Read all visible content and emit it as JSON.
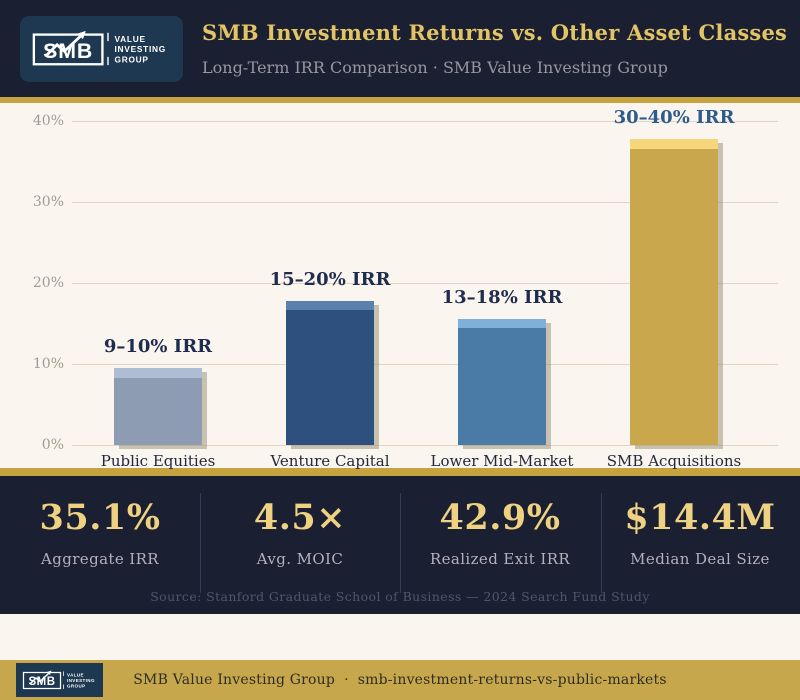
{
  "header": {
    "title": "SMB Investment Returns vs. Other Asset Classes",
    "subtitle": "Long-Term IRR Comparison · SMB Value Investing Group"
  },
  "logo": {
    "wordmark": "SMB",
    "tagline_lines": [
      "VALUE",
      "INVESTING",
      "GROUP"
    ]
  },
  "chart_data": {
    "type": "bar",
    "title": "SMB Investment Returns vs. Other Asset Classes",
    "subtitle": "Long-Term IRR Comparison · SMB Value Investing Group",
    "ylabel": "IRR",
    "ylim": [
      0,
      40
    ],
    "ytick_step": 10,
    "yticks": [
      "40%",
      "30%",
      "20%",
      "10%",
      "0%"
    ],
    "grid": true,
    "categories": [
      "Public Equities",
      "Venture Capital",
      "Lower Mid-Market",
      "SMB Acquisitions"
    ],
    "bars": [
      {
        "category": "Public Equities",
        "label": "9–10% IRR",
        "irr_range_low": 9,
        "irr_range_high": 10,
        "value_pct": 9.5,
        "cap_pct": 1.2,
        "color": "#8e9cb3",
        "cap_color": "#aebdd3",
        "label_color": "#1f2c4e"
      },
      {
        "category": "Venture Capital",
        "label": "15–20% IRR",
        "irr_range_low": 15,
        "irr_range_high": 20,
        "value_pct": 17.8,
        "cap_pct": 1.1,
        "color": "#2d507e",
        "cap_color": "#5a80ae",
        "label_color": "#1f2c4e"
      },
      {
        "category": "Lower Mid-Market",
        "label": "13–18% IRR",
        "irr_range_low": 13,
        "irr_range_high": 18,
        "value_pct": 15.6,
        "cap_pct": 1.1,
        "color": "#4a7aa6",
        "cap_color": "#7fb0d9",
        "label_color": "#1f2c4e"
      },
      {
        "category": "SMB Acquisitions",
        "label": "30–40% IRR",
        "irr_range_low": 30,
        "irr_range_high": 40,
        "value_pct": 37.8,
        "cap_pct": 1.2,
        "color": "#c9a74c",
        "cap_color": "#f5d67b",
        "label_color": "#2e5a8c"
      }
    ]
  },
  "stats": [
    {
      "value": "35.1%",
      "label": "Aggregate IRR"
    },
    {
      "value": "4.5×",
      "label": "Avg. MOIC"
    },
    {
      "value": "42.9%",
      "label": "Realized Exit IRR"
    },
    {
      "value": "$14.4M",
      "label": "Median Deal Size"
    }
  ],
  "source_note": "Source: Stanford Graduate School of Business — 2024 Search Fund Study",
  "footer": {
    "brand": "SMB Value Investing Group",
    "separator": "·",
    "slug": "smb-investment-returns-vs-public-markets"
  },
  "colors": {
    "navy_bg": "#1a1f32",
    "logo_navy": "#1d3850",
    "gold_accent": "#c5a33e",
    "footer_gold": "#c7a74b",
    "title_gold": "#e3c464",
    "stat_gold": "#eed181",
    "chart_bg": "#faf5ee"
  }
}
